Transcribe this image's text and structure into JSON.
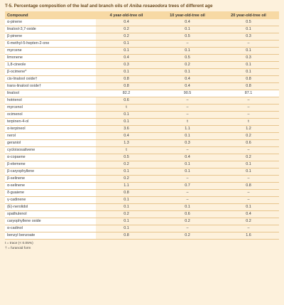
{
  "title_prefix": "T-5. Percentage composition of the leaf and branch oils of ",
  "title_species": "Aniba rosaeodora",
  "title_suffix": " trees of different age",
  "headers": [
    "Compound",
    "4 year-old-tree oil",
    "10 year-old-tree oil",
    "20 year-old-tree oil"
  ],
  "rows": [
    [
      "α-pinene",
      "0.4",
      "0.4",
      "0.5"
    ],
    [
      "linalool-3,7-oxide",
      "0.2",
      "0.1",
      "0.1"
    ],
    [
      "β-pinene",
      "0.2",
      "0.5",
      "0.3"
    ],
    [
      "6-methyl-5-hepten-2-one",
      "0.1",
      "–",
      "–"
    ],
    [
      "myrcene",
      "0.1",
      "0.1",
      "0.1"
    ],
    [
      "limonene",
      "0.4",
      "0.5",
      "0.3"
    ],
    [
      "1,8-cineole",
      "0.3",
      "0.2",
      "0.1"
    ],
    [
      "β-ocimene*",
      "0.1",
      "0.1",
      "0.1"
    ],
    [
      "cis-linalool oxide†",
      "0.8",
      "0.4",
      "0.8"
    ],
    [
      "trans-linalool oxide†",
      "0.8",
      "0.4",
      "0.8"
    ],
    [
      "linalool",
      "82.2",
      "90.5",
      "87.1"
    ],
    [
      "hotrienol",
      "0.6",
      "–",
      "–"
    ],
    [
      "myrcenol",
      "t",
      "–",
      "–"
    ],
    [
      "ocimenol",
      "0.1",
      "–",
      "–"
    ],
    [
      "terpinen-4-ol",
      "0.1",
      "t",
      "t"
    ],
    [
      "α-terpineol",
      "3.6",
      "1.1",
      "1.2"
    ],
    [
      "nerol",
      "0.4",
      "0.1",
      "0.2"
    ],
    [
      "geraniol",
      "1.3",
      "0.3",
      "0.6"
    ],
    [
      "cycloisosativene",
      "t",
      "–",
      "–"
    ],
    [
      "α-copaene",
      "0.5",
      "0.4",
      "0.2"
    ],
    [
      "β-elemene",
      "0.2",
      "0.1",
      "0.1"
    ],
    [
      "β-caryophyllene",
      "0.1",
      "0.1",
      "0.1"
    ],
    [
      "β-selinene",
      "0.2",
      "–",
      "–"
    ],
    [
      "α-selinene",
      "1.1",
      "0.7",
      "0.8"
    ],
    [
      "δ-guaiene",
      "0.8",
      "–",
      "–"
    ],
    [
      "γ-cadinene",
      "0.1",
      "–",
      "–"
    ],
    [
      "(E)-nerolidol",
      "0.1",
      "0.1",
      "0.1"
    ],
    [
      "spathulenol",
      "0.2",
      "0.6",
      "0.4"
    ],
    [
      "caryophyllene oxide",
      "0.1",
      "0.2",
      "0.2"
    ],
    [
      "α-cadinol",
      "0.1",
      "–",
      "–"
    ],
    [
      "benzyl benzoate",
      "0.8",
      "0.2",
      "1.6"
    ]
  ],
  "footnotes": [
    "t = trace (< 0.05%)",
    "† = furanoid form"
  ]
}
